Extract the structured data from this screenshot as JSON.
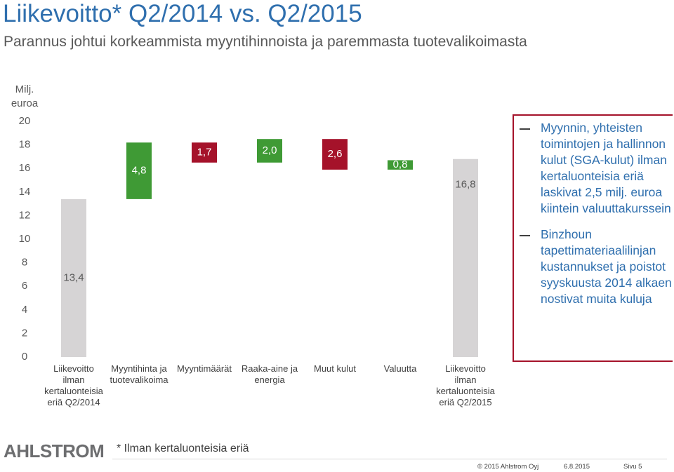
{
  "chart_data": {
    "type": "waterfall",
    "title": "Liikevoitto* Q2/2014 vs. Q2/2015",
    "subtitle": "Parannus johtui korkeammista myyntihinnoista ja paremmasta tuotevalikoimasta",
    "y_label": "Milj. euroa",
    "categories": [
      "Liikevoitto\nilman\nkertaluonteisia\neriä Q2/2014",
      "Myyntihinta ja\ntuotevalikoima",
      "Myyntimäärät",
      "Raaka-aine ja\nenergia",
      "Muut kulut",
      "Valuutta",
      "Liikevoitto\nilman\nkertaluonteisia\neriä Q2/2015"
    ],
    "values": [
      13.4,
      4.8,
      -1.7,
      2.0,
      -2.6,
      0.8,
      16.8
    ],
    "value_labels": [
      "13,4",
      "4,8",
      "1,7",
      "2,0",
      "2,6",
      "0,8",
      "16,8"
    ],
    "is_total": [
      true,
      false,
      false,
      false,
      false,
      false,
      true
    ],
    "colors": {
      "total": "#d6d4d5",
      "increase": "#3f9a35",
      "decrease": "#a5122a"
    },
    "ylim": [
      0,
      20
    ],
    "yticks": [
      0,
      2,
      4,
      6,
      8,
      10,
      12,
      14,
      16,
      18,
      20
    ]
  },
  "notes": {
    "bullets": [
      "Myynnin, yhteisten toimintojen ja hallinnon kulut (SGA-kulut) ilman kertaluonteisia eriä laskivat 2,5 milj. euroa kiintein valuuttakurssein",
      "Binzhoun tapettimateriaalilinjan kustannukset ja poistot syyskuusta 2014 alkaen nostivat muita kuluja"
    ]
  },
  "footer": {
    "logo": "AHLSTROM",
    "footnote": "* Ilman kertaluonteisia eriä",
    "copyright": "© 2015 Ahlstrom Oyj",
    "date": "6.8.2015",
    "page": "Sivu 5"
  }
}
